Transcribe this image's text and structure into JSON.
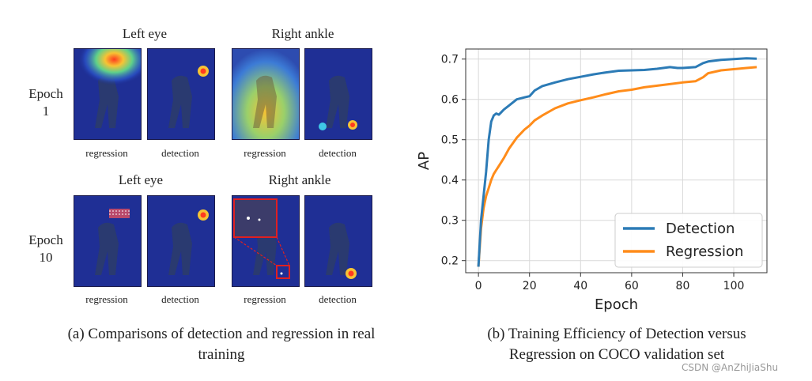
{
  "figure_a": {
    "columns_top": [
      "Left eye",
      "Right ankle"
    ],
    "columns_bottom": [
      "Left eye",
      "Right ankle"
    ],
    "rows": [
      {
        "epoch": "Epoch",
        "num": "1"
      },
      {
        "epoch": "Epoch",
        "num": "10"
      }
    ],
    "sub_labels": [
      "regression",
      "detection",
      "regression",
      "detection"
    ],
    "caption_line1": "(a) Comparisons of detection and regression in real",
    "caption_line2": "training"
  },
  "figure_b": {
    "caption_line1": "(b) Training Efficiency of Detection versus",
    "caption_line2": "Regression on COCO validation set"
  },
  "chart_data": {
    "type": "line",
    "xlabel": "Epoch",
    "ylabel": "AP",
    "xlim": [
      -5,
      113
    ],
    "ylim": [
      0.17,
      0.725
    ],
    "xticks": [
      0,
      20,
      40,
      60,
      80,
      100
    ],
    "yticks": [
      0.2,
      0.3,
      0.4,
      0.5,
      0.6,
      0.7
    ],
    "grid": true,
    "legend_position": "lower-right",
    "series": [
      {
        "name": "Detection",
        "color": "#2c7bb6",
        "x": [
          0,
          1,
          2,
          3,
          4,
          5,
          6,
          7,
          8,
          10,
          12,
          15,
          18,
          20,
          22,
          25,
          30,
          35,
          40,
          45,
          50,
          55,
          60,
          65,
          70,
          75,
          78,
          80,
          85,
          88,
          90,
          95,
          100,
          105,
          109
        ],
        "y": [
          0.185,
          0.3,
          0.36,
          0.42,
          0.5,
          0.545,
          0.56,
          0.565,
          0.562,
          0.575,
          0.585,
          0.6,
          0.605,
          0.608,
          0.622,
          0.633,
          0.642,
          0.65,
          0.656,
          0.662,
          0.667,
          0.671,
          0.672,
          0.673,
          0.676,
          0.68,
          0.678,
          0.678,
          0.68,
          0.69,
          0.694,
          0.698,
          0.7,
          0.702,
          0.701
        ]
      },
      {
        "name": "Regression",
        "color": "#ff8c1a",
        "x": [
          0,
          1,
          2,
          3,
          4,
          5,
          6,
          7,
          8,
          10,
          12,
          15,
          18,
          20,
          22,
          25,
          30,
          35,
          40,
          45,
          50,
          55,
          60,
          65,
          70,
          75,
          80,
          85,
          88,
          90,
          95,
          100,
          105,
          109
        ],
        "y": [
          0.185,
          0.28,
          0.33,
          0.36,
          0.38,
          0.4,
          0.415,
          0.425,
          0.435,
          0.455,
          0.478,
          0.505,
          0.525,
          0.535,
          0.548,
          0.56,
          0.578,
          0.59,
          0.598,
          0.605,
          0.613,
          0.62,
          0.624,
          0.63,
          0.634,
          0.638,
          0.642,
          0.645,
          0.655,
          0.665,
          0.672,
          0.675,
          0.678,
          0.68
        ]
      }
    ]
  },
  "watermark": "CSDN @AnZhiJiaShu"
}
